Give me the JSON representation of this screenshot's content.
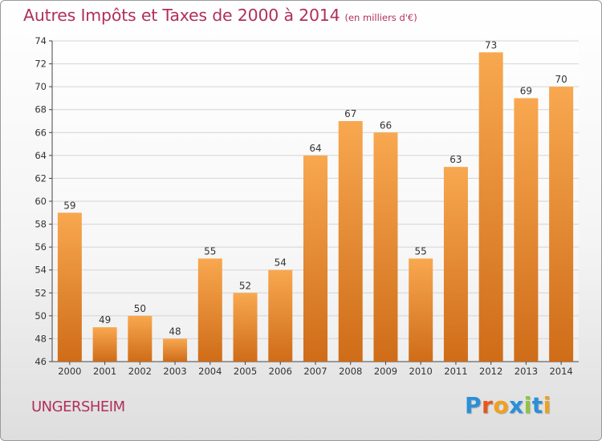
{
  "header": {
    "title": "Autres Impôts et Taxes de 2000 à 2014",
    "subtitle": "(en milliers d'€)"
  },
  "footer": {
    "commune": "UNGERSHEIM",
    "logo_letters": [
      {
        "char": "P",
        "color": "#2a8fd8"
      },
      {
        "char": "r",
        "color": "#e8561c"
      },
      {
        "char": "o",
        "color": "#f0a020"
      },
      {
        "char": "x",
        "color": "#2a8fd8"
      },
      {
        "char": "i",
        "color": "#8cc63f"
      },
      {
        "char": "t",
        "color": "#2a8fd8"
      },
      {
        "char": "i",
        "color": "#f0a020"
      }
    ]
  },
  "colors": {
    "bar_light": "#f8a850",
    "bar_dark": "#cf6c18",
    "title": "#b0305a",
    "grid": "#d4d4d4",
    "axis": "#444444"
  },
  "chart_data": {
    "type": "bar",
    "title": "Autres Impôts et Taxes de 2000 à 2014",
    "subtitle": "(en milliers d'€)",
    "xlabel": "",
    "ylabel": "",
    "categories": [
      "2000",
      "2001",
      "2002",
      "2003",
      "2004",
      "2005",
      "2006",
      "2007",
      "2008",
      "2009",
      "2010",
      "2011",
      "2012",
      "2013",
      "2014"
    ],
    "values": [
      59,
      49,
      50,
      48,
      55,
      52,
      54,
      64,
      67,
      66,
      55,
      63,
      73,
      69,
      70
    ],
    "ylim": [
      46,
      74
    ],
    "yticks": [
      46,
      48,
      50,
      52,
      54,
      56,
      58,
      60,
      62,
      64,
      66,
      68,
      70,
      72,
      74
    ],
    "grid": true,
    "legend": "none"
  }
}
